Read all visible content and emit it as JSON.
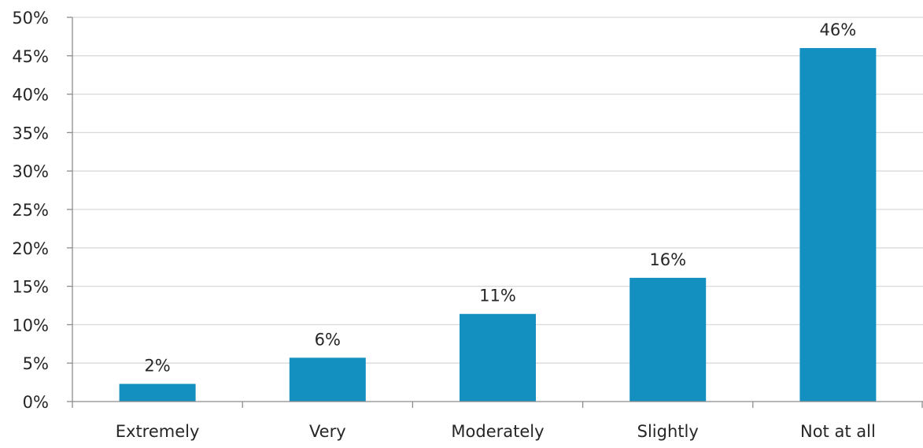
{
  "chart_data": {
    "type": "bar",
    "title": "",
    "xlabel": "",
    "ylabel": "",
    "categories": [
      "Extremely",
      "Very",
      "Moderately",
      "Slightly",
      "Not at all"
    ],
    "values": [
      2.3,
      5.7,
      11.4,
      16.1,
      46.0
    ],
    "value_labels": [
      "2%",
      "6%",
      "11%",
      "16%",
      "46%"
    ],
    "ylim": [
      0,
      50
    ],
    "yticks": [
      0,
      5,
      10,
      15,
      20,
      25,
      30,
      35,
      40,
      45,
      50
    ],
    "ytick_labels": [
      "0%",
      "5%",
      "10%",
      "15%",
      "20%",
      "25%",
      "30%",
      "35%",
      "40%",
      "45%",
      "50%"
    ],
    "grid": true,
    "legend": "none",
    "colors": {
      "bar": "#1490c0",
      "grid": "#d9d9d9",
      "axis": "#8c8c8c",
      "text": "#262626"
    }
  }
}
